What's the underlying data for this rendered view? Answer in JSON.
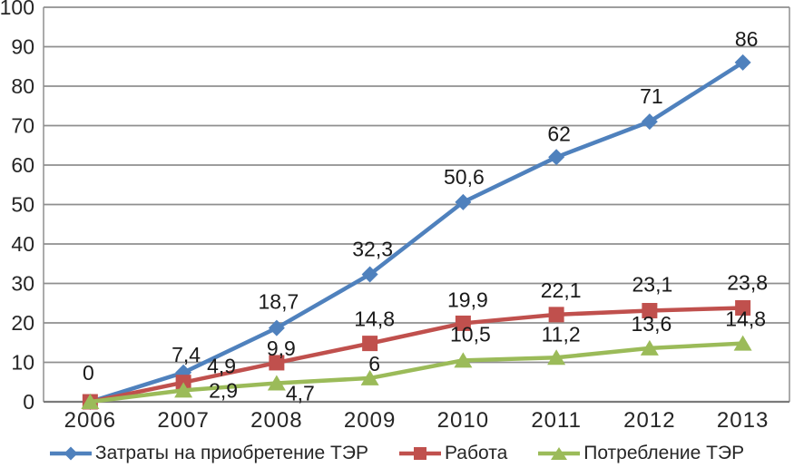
{
  "chart_data": {
    "type": "line",
    "title": "",
    "xlabel": "",
    "ylabel": "",
    "categories": [
      "2006",
      "2007",
      "2008",
      "2009",
      "2010",
      "2011",
      "2012",
      "2013"
    ],
    "ylim": [
      0,
      100
    ],
    "y_tick_labels": [
      "0",
      "10",
      "20",
      "30",
      "40",
      "50",
      "60",
      "70",
      "80",
      "90",
      "100"
    ],
    "grid": "horizontal",
    "legend_position": "bottom",
    "series": [
      {
        "name": "Затраты на приобретение ТЭР",
        "color": "#4F81BD",
        "marker": "diamond",
        "values": [
          0,
          7.4,
          18.7,
          32.3,
          50.6,
          62,
          71,
          86
        ],
        "labels": [
          "0",
          "7,4",
          "18,7",
          "32,3",
          "50,6",
          "62",
          "71",
          "86"
        ],
        "label_offsets": [
          [
            -2,
            -32
          ],
          [
            3,
            -20
          ],
          [
            2,
            -29
          ],
          [
            3,
            -28
          ],
          [
            1,
            -28
          ],
          [
            3,
            -26
          ],
          [
            2,
            -28
          ],
          [
            4,
            -26
          ]
        ]
      },
      {
        "name": "Работа",
        "color": "#C0504D",
        "marker": "square",
        "values": [
          0,
          4.9,
          9.9,
          14.8,
          19.9,
          22.1,
          23.1,
          23.8
        ],
        "labels": [
          null,
          "4,9",
          "9,9",
          "14,8",
          "19,9",
          "22,1",
          "23,1",
          "23,8"
        ],
        "label_offsets": [
          null,
          [
            42,
            -18
          ],
          [
            5,
            -16
          ],
          [
            5,
            -27
          ],
          [
            5,
            -26
          ],
          [
            5,
            -27
          ],
          [
            3,
            -29
          ],
          [
            5,
            -28
          ]
        ]
      },
      {
        "name": "Потребление ТЭР",
        "color": "#9BBB59",
        "marker": "triangle",
        "values": [
          0,
          2.9,
          4.7,
          6,
          10.5,
          11.2,
          13.6,
          14.8
        ],
        "labels": [
          null,
          "2,9",
          "4,7",
          "6",
          "10,5",
          "11,2",
          "13,6",
          "14,8"
        ],
        "label_offsets": [
          null,
          [
            44,
            0
          ],
          [
            26,
            11
          ],
          [
            5,
            -16
          ],
          [
            8,
            -29
          ],
          [
            5,
            -26
          ],
          [
            2,
            -27
          ],
          [
            3,
            -27
          ]
        ]
      }
    ],
    "colors": {
      "gridline": "#8F8F8F",
      "plot_border": "#8F8F8F",
      "axis_line": "#7A7A7A",
      "axis_text": "#262626",
      "data_label_text": "#1A1A1A"
    }
  }
}
